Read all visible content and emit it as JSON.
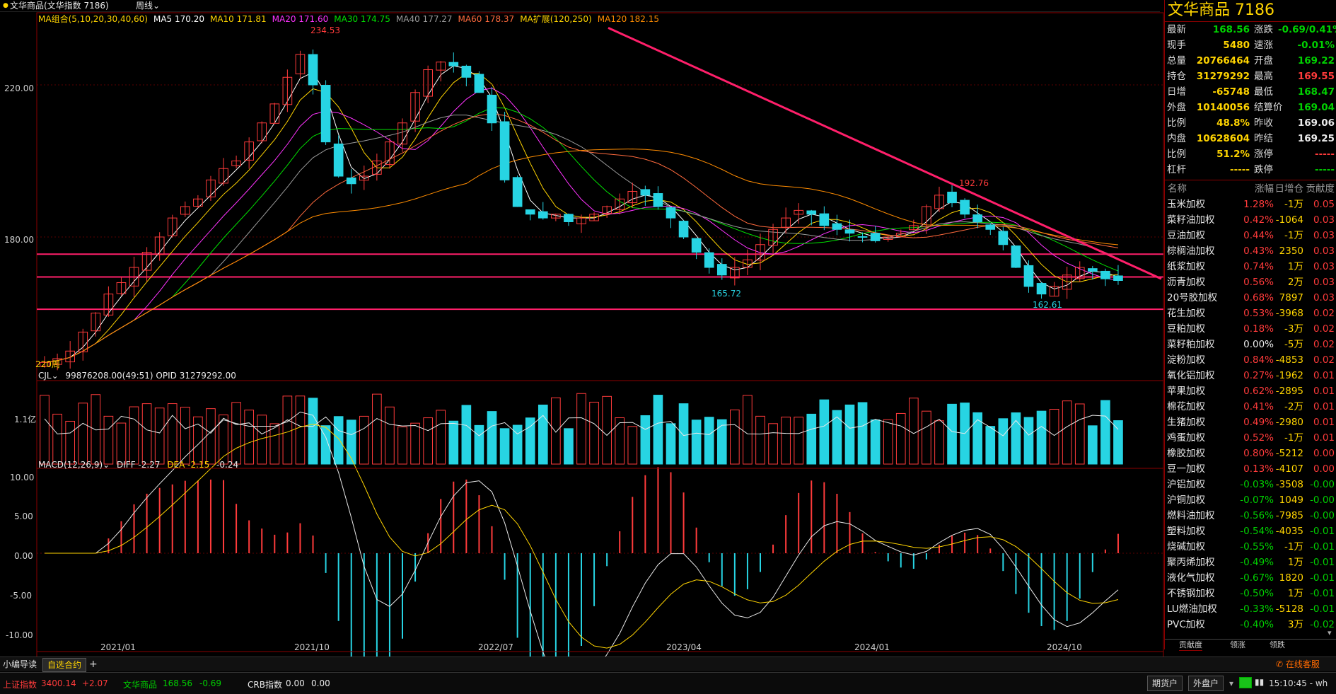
{
  "header": {
    "title": "文华商品(文华指数 7186)",
    "period": "周线"
  },
  "ma_legend": [
    {
      "label": "MA组合(5,10,20,30,40,60)",
      "color": "#ffd400"
    },
    {
      "label": "MA5 170.20",
      "color": "#ffffff"
    },
    {
      "label": "MA10 171.81",
      "color": "#ffd400"
    },
    {
      "label": "MA20 171.60",
      "color": "#ff33ff"
    },
    {
      "label": "MA30 174.75",
      "color": "#00e000"
    },
    {
      "label": "MA40 177.27",
      "color": "#9a9a9a"
    },
    {
      "label": "MA60 178.37",
      "color": "#ff6a3d"
    },
    {
      "label": "MA扩展(120,250)",
      "color": "#ffd400"
    },
    {
      "label": "MA120 182.15",
      "color": "#ff8c00"
    }
  ],
  "price_axis": [
    "220.00",
    "180.00"
  ],
  "annotations": {
    "high": "234.53",
    "low1": "165.72",
    "high2": "192.76",
    "low2": "162.61",
    "period_tag": "220周"
  },
  "volume_header": {
    "name": "CJL",
    "values": "99876208.00(49:51)  OPID 31279292.00",
    "axis": "1.1亿"
  },
  "macd_header": {
    "name": "MACD(12,26,9)",
    "diff": "DIFF -2.27",
    "dea": "DEA -2.15",
    "macd": "-0.24"
  },
  "macd_axis": [
    "10.00",
    "5.00",
    "0.00",
    "-5.00",
    "-10.00"
  ],
  "date_axis": [
    "2021/01",
    "2021/10",
    "2022/07",
    "2023/04",
    "2024/01",
    "2024/10"
  ],
  "chart_data": {
    "type": "candlestick",
    "title": "文华商品(文华指数 7186)",
    "period": "周线",
    "x_ticks": [
      "2021/01",
      "2021/10",
      "2022/07",
      "2023/04",
      "2024/01",
      "2024/10"
    ],
    "ylim": [
      140,
      240
    ],
    "y_ticks": [
      220,
      180
    ],
    "key_points": [
      {
        "label": "234.53",
        "value": 234.53,
        "date": "2021/10"
      },
      {
        "label": "165.72",
        "value": 165.72,
        "date": "2023/05"
      },
      {
        "label": "192.76",
        "value": 192.76,
        "date": "2024/04"
      },
      {
        "label": "162.61",
        "value": 162.61,
        "date": "2024/08"
      }
    ],
    "horizontal_lines": [
      175.5,
      169.5,
      161.0
    ],
    "trendline": {
      "from_value": 235.0,
      "to_value": 169.0
    },
    "close_series_approx": [
      147,
      148,
      150,
      155,
      160,
      165,
      168,
      172,
      176,
      180,
      185,
      188,
      190,
      195,
      198,
      200,
      205,
      210,
      215,
      222,
      228,
      220,
      205,
      196,
      194,
      196,
      200,
      205,
      210,
      218,
      224,
      226,
      225,
      222,
      218,
      210,
      195,
      188,
      186,
      185,
      186,
      184,
      185,
      186,
      188,
      190,
      192,
      191,
      188,
      185,
      180,
      176,
      172,
      170,
      172,
      174,
      178,
      182,
      185,
      187,
      186,
      183,
      182,
      181,
      180,
      179,
      180,
      181,
      183,
      188,
      191,
      189,
      186,
      184,
      182,
      178,
      172,
      167,
      165,
      167,
      170,
      172,
      171,
      169,
      168.56
    ],
    "ma_values": {
      "MA5": 170.2,
      "MA10": 171.81,
      "MA20": 171.6,
      "MA30": 174.75,
      "MA40": 177.27,
      "MA60": 178.37,
      "MA120": 182.15
    },
    "volume": {
      "label": "CJL",
      "value": 99876208.0,
      "ratio": "49:51",
      "opid": 31279292.0
    },
    "macd": {
      "diff": -2.27,
      "dea": -2.15,
      "macd": -0.24,
      "ylim": [
        -10,
        10
      ]
    }
  },
  "quote": {
    "title": "文华商品",
    "code": "7186",
    "rows": [
      {
        "l1": "最新",
        "v1": "168.56",
        "c1": "green",
        "l2": "涨跌",
        "v2": "-0.69/0.41%",
        "c2": "green"
      },
      {
        "l1": "现手",
        "v1": "5480",
        "c1": "yellow",
        "l2": "速涨",
        "v2": "-0.01%",
        "c2": "green"
      },
      {
        "l1": "总量",
        "v1": "20766464",
        "c1": "yellow",
        "l2": "开盘",
        "v2": "169.22",
        "c2": "green"
      },
      {
        "l1": "持仓",
        "v1": "31279292",
        "c1": "yellow",
        "l2": "最高",
        "v2": "169.55",
        "c2": "red"
      },
      {
        "l1": "日增",
        "v1": "-65748",
        "c1": "yellow",
        "l2": "最低",
        "v2": "168.47",
        "c2": "green"
      },
      {
        "l1": "外盘",
        "v1": "10140056",
        "c1": "yellow",
        "l2": "结算价",
        "v2": "169.04",
        "c2": "green"
      },
      {
        "l1": "比例",
        "v1": "48.8%",
        "c1": "yellow",
        "l2": "昨收",
        "v2": "169.06",
        "c2": "white"
      },
      {
        "l1": "内盘",
        "v1": "10628604",
        "c1": "yellow",
        "l2": "昨结",
        "v2": "169.25",
        "c2": "white"
      },
      {
        "l1": "比例",
        "v1": "51.2%",
        "c1": "yellow",
        "l2": "涨停",
        "v2": "-----",
        "c2": "red"
      },
      {
        "l1": "杠杆",
        "v1": "-----",
        "c1": "yellow",
        "l2": "跌停",
        "v2": "-----",
        "c2": "green"
      }
    ]
  },
  "contrib_header": {
    "name": "名称",
    "pct": "涨幅",
    "oi": "日增仓",
    "contrib": "贡献度"
  },
  "contrib_list": [
    {
      "name": "玉米加权",
      "pct": "1.28%",
      "oi": "-1万",
      "c": "0.05",
      "pc": "red",
      "oc": "yellow",
      "cc": "red"
    },
    {
      "name": "菜籽油加权",
      "pct": "0.42%",
      "oi": "-1064",
      "c": "0.03",
      "pc": "red",
      "oc": "yellow",
      "cc": "red"
    },
    {
      "name": "豆油加权",
      "pct": "0.44%",
      "oi": "-1万",
      "c": "0.03",
      "pc": "red",
      "oc": "yellow",
      "cc": "red"
    },
    {
      "name": "棕榈油加权",
      "pct": "0.43%",
      "oi": "2350",
      "c": "0.03",
      "pc": "red",
      "oc": "yellow",
      "cc": "red"
    },
    {
      "name": "纸浆加权",
      "pct": "0.74%",
      "oi": "1万",
      "c": "0.03",
      "pc": "red",
      "oc": "yellow",
      "cc": "red"
    },
    {
      "name": "沥青加权",
      "pct": "0.56%",
      "oi": "2万",
      "c": "0.03",
      "pc": "red",
      "oc": "yellow",
      "cc": "red"
    },
    {
      "name": "20号胶加权",
      "pct": "0.68%",
      "oi": "7897",
      "c": "0.03",
      "pc": "red",
      "oc": "yellow",
      "cc": "red"
    },
    {
      "name": "花生加权",
      "pct": "0.53%",
      "oi": "-3968",
      "c": "0.02",
      "pc": "red",
      "oc": "yellow",
      "cc": "red"
    },
    {
      "name": "豆粕加权",
      "pct": "0.18%",
      "oi": "-3万",
      "c": "0.02",
      "pc": "red",
      "oc": "yellow",
      "cc": "red"
    },
    {
      "name": "菜籽粕加权",
      "pct": "0.00%",
      "oi": "-5万",
      "c": "0.02",
      "pc": "white",
      "oc": "yellow",
      "cc": "red"
    },
    {
      "name": "淀粉加权",
      "pct": "0.84%",
      "oi": "-4853",
      "c": "0.02",
      "pc": "red",
      "oc": "yellow",
      "cc": "red"
    },
    {
      "name": "氧化铝加权",
      "pct": "0.27%",
      "oi": "-1962",
      "c": "0.01",
      "pc": "red",
      "oc": "yellow",
      "cc": "red"
    },
    {
      "name": "苹果加权",
      "pct": "0.62%",
      "oi": "-2895",
      "c": "0.01",
      "pc": "red",
      "oc": "yellow",
      "cc": "red"
    },
    {
      "name": "棉花加权",
      "pct": "0.41%",
      "oi": "-2万",
      "c": "0.01",
      "pc": "red",
      "oc": "yellow",
      "cc": "red"
    },
    {
      "name": "生猪加权",
      "pct": "0.49%",
      "oi": "-2980",
      "c": "0.01",
      "pc": "red",
      "oc": "yellow",
      "cc": "red"
    },
    {
      "name": "鸡蛋加权",
      "pct": "0.52%",
      "oi": "-1万",
      "c": "0.01",
      "pc": "red",
      "oc": "yellow",
      "cc": "red"
    },
    {
      "name": "橡胶加权",
      "pct": "0.80%",
      "oi": "-5212",
      "c": "0.00",
      "pc": "red",
      "oc": "yellow",
      "cc": "red"
    },
    {
      "name": "豆一加权",
      "pct": "0.13%",
      "oi": "-4107",
      "c": "0.00",
      "pc": "red",
      "oc": "yellow",
      "cc": "red"
    },
    {
      "name": "沪铝加权",
      "pct": "-0.03%",
      "oi": "-3508",
      "c": "-0.00",
      "pc": "green",
      "oc": "yellow",
      "cc": "green"
    },
    {
      "name": "沪铜加权",
      "pct": "-0.07%",
      "oi": "1049",
      "c": "-0.00",
      "pc": "green",
      "oc": "yellow",
      "cc": "green"
    },
    {
      "name": "燃料油加权",
      "pct": "-0.56%",
      "oi": "-7985",
      "c": "-0.00",
      "pc": "green",
      "oc": "yellow",
      "cc": "green"
    },
    {
      "name": "塑料加权",
      "pct": "-0.54%",
      "oi": "-4035",
      "c": "-0.01",
      "pc": "green",
      "oc": "yellow",
      "cc": "green"
    },
    {
      "name": "烧碱加权",
      "pct": "-0.55%",
      "oi": "-1万",
      "c": "-0.01",
      "pc": "green",
      "oc": "yellow",
      "cc": "green"
    },
    {
      "name": "聚丙烯加权",
      "pct": "-0.49%",
      "oi": "1万",
      "c": "-0.01",
      "pc": "green",
      "oc": "yellow",
      "cc": "green"
    },
    {
      "name": "液化气加权",
      "pct": "-0.67%",
      "oi": "1820",
      "c": "-0.01",
      "pc": "green",
      "oc": "yellow",
      "cc": "green"
    },
    {
      "name": "不锈钢加权",
      "pct": "-0.50%",
      "oi": "1万",
      "c": "-0.01",
      "pc": "green",
      "oc": "yellow",
      "cc": "green"
    },
    {
      "name": "LU燃油加权",
      "pct": "-0.33%",
      "oi": "-5128",
      "c": "-0.01",
      "pc": "green",
      "oc": "yellow",
      "cc": "green"
    },
    {
      "name": "PVC加权",
      "pct": "-0.40%",
      "oi": "3万",
      "c": "-0.02",
      "pc": "green",
      "oc": "yellow",
      "cc": "green"
    }
  ],
  "panel_tabs": [
    "贡献度",
    "领涨",
    "领跌"
  ],
  "bottom_tabs": [
    "小编导读",
    "自选合约",
    "+"
  ],
  "online_service": "在线客服",
  "status": {
    "sh_label": "上证指数",
    "sh_value": "3400.14",
    "sh_change": "+2.07",
    "wh_label": "文华商品",
    "wh_value": "168.56",
    "wh_change": "-0.69",
    "crb_label": "CRB指数",
    "crb_value": "0.00",
    "crb_change": "0.00",
    "btn_futures": "期货户",
    "btn_foreign": "外盘户",
    "time": "15:10:45 - wh"
  }
}
